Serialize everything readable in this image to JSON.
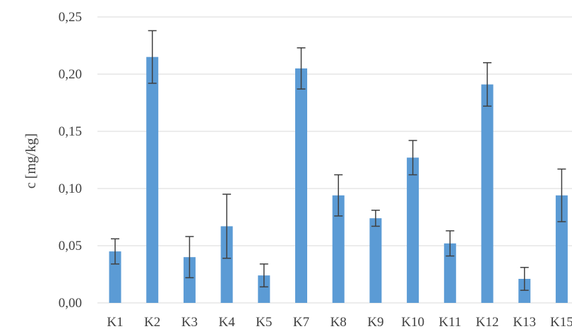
{
  "chart_data": {
    "type": "bar",
    "ylabel": "c [mg/kg]",
    "ylim": [
      0,
      0.25
    ],
    "yticks": [
      "0,00",
      "0,05",
      "0,10",
      "0,15",
      "0,20",
      "0,25"
    ],
    "grid": true,
    "categories": [
      "K1",
      "K2",
      "K3",
      "K4",
      "K5",
      "K7",
      "K8",
      "K9",
      "K10",
      "K11",
      "K12",
      "K13",
      "K15"
    ],
    "values": [
      0.045,
      0.215,
      0.04,
      0.067,
      0.024,
      0.205,
      0.094,
      0.074,
      0.127,
      0.052,
      0.191,
      0.021,
      0.094
    ],
    "errors": [
      0.011,
      0.023,
      0.018,
      0.028,
      0.01,
      0.018,
      0.018,
      0.007,
      0.015,
      0.011,
      0.019,
      0.01,
      0.023
    ],
    "bar_color": "#5b9bd5",
    "grid_color": "#d9d9d9",
    "error_color": "#404040"
  }
}
